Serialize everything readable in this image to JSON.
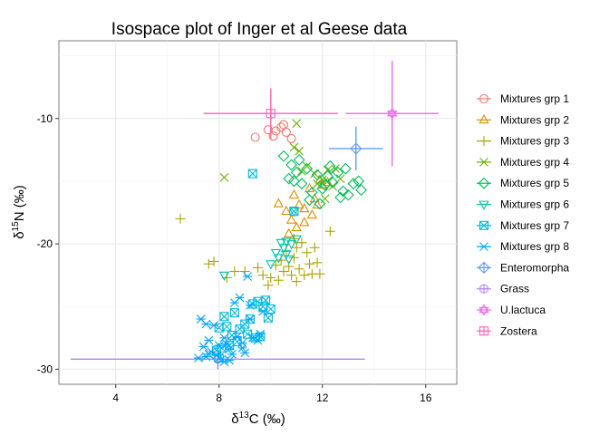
{
  "chart_data": {
    "type": "scatter",
    "title": "Isospace plot of Inger et al Geese data",
    "xlabel": {
      "prefix": "δ",
      "sup": "13",
      "main": "C (‰)"
    },
    "ylabel": {
      "prefix": "δ",
      "sup": "15",
      "main": "N (‰)"
    },
    "xlim": [
      1.8,
      17.2
    ],
    "ylim": [
      -31.2,
      -3.8
    ],
    "x_ticks": [
      4,
      8,
      12,
      16
    ],
    "y_ticks": [
      -10,
      -20,
      -30
    ],
    "grid": true,
    "legend_position": "right",
    "colors": {
      "Mixtures grp 1": "#F8766D",
      "Mixtures grp 2": "#DB8E00",
      "Mixtures grp 3": "#AEA200",
      "Mixtures grp 4": "#64B200",
      "Mixtures grp 5": "#00BD5C",
      "Mixtures grp 6": "#00C1A7",
      "Mixtures grp 7": "#00BADE",
      "Mixtures grp 8": "#00A6FF",
      "Enteromorpha": "#619CFF",
      "Grass": "#B385FF",
      "U.lactuca": "#EF67EB",
      "Zostera": "#FF63B6"
    },
    "legend": [
      {
        "name": "Mixtures grp 1",
        "shape": "circle"
      },
      {
        "name": "Mixtures grp 2",
        "shape": "triangle"
      },
      {
        "name": "Mixtures grp 3",
        "shape": "plus"
      },
      {
        "name": "Mixtures grp 4",
        "shape": "cross"
      },
      {
        "name": "Mixtures grp 5",
        "shape": "diamond"
      },
      {
        "name": "Mixtures grp 6",
        "shape": "triangle-down"
      },
      {
        "name": "Mixtures grp 7",
        "shape": "square-x"
      },
      {
        "name": "Mixtures grp 8",
        "shape": "asterisk"
      },
      {
        "name": "Enteromorpha",
        "shape": "diamond-plus"
      },
      {
        "name": "Grass",
        "shape": "circle-plus"
      },
      {
        "name": "U.lactuca",
        "shape": "star-david"
      },
      {
        "name": "Zostera",
        "shape": "square-plus"
      }
    ],
    "sources": [
      {
        "name": "Enteromorpha",
        "x": 13.3,
        "y": -12.4,
        "xerr": 1.05,
        "yerr": 1.75
      },
      {
        "name": "Grass",
        "x": 7.95,
        "y": -29.2,
        "xerr": 5.7,
        "yerr": 0.8
      },
      {
        "name": "U.lactuca",
        "x": 14.7,
        "y": -9.6,
        "xerr": 1.8,
        "yerr": 4.2
      },
      {
        "name": "Zostera",
        "x": 10.0,
        "y": -9.6,
        "xerr": 2.6,
        "yerr": 2.0
      }
    ],
    "series": [
      {
        "name": "Mixtures grp 1",
        "points": [
          [
            9.4,
            -11.5
          ],
          [
            9.9,
            -10.9
          ],
          [
            10.2,
            -11.0
          ],
          [
            10.4,
            -10.7
          ],
          [
            10.5,
            -10.5
          ],
          [
            10.6,
            -11.1
          ],
          [
            10.8,
            -11.6
          ],
          [
            10.1,
            -11.4
          ]
        ]
      },
      {
        "name": "Mixtures grp 2",
        "points": [
          [
            10.3,
            -16.8
          ],
          [
            10.6,
            -17.4
          ],
          [
            10.8,
            -18.1
          ],
          [
            10.9,
            -16.1
          ],
          [
            11.1,
            -16.9
          ],
          [
            11.3,
            -17.2
          ],
          [
            11.5,
            -15.6
          ],
          [
            11.7,
            -16.4
          ],
          [
            11.9,
            -14.9
          ],
          [
            12.0,
            -15.3
          ],
          [
            11.3,
            -18.3
          ],
          [
            11.6,
            -17.7
          ],
          [
            12.2,
            -15.1
          ],
          [
            11.0,
            -18.7
          ],
          [
            10.7,
            -19.2
          ],
          [
            11.8,
            -16.9
          ]
        ]
      },
      {
        "name": "Mixtures grp 3",
        "points": [
          [
            6.5,
            -18.0
          ],
          [
            7.6,
            -21.6
          ],
          [
            7.8,
            -21.4
          ],
          [
            8.3,
            -22.7
          ],
          [
            8.6,
            -22.2
          ],
          [
            9.0,
            -22.2
          ],
          [
            9.5,
            -21.9
          ],
          [
            9.9,
            -23.3
          ],
          [
            10.0,
            -22.7
          ],
          [
            10.2,
            -21.7
          ],
          [
            10.4,
            -21.3
          ],
          [
            10.5,
            -22.2
          ],
          [
            10.7,
            -21.8
          ],
          [
            10.8,
            -22.5
          ],
          [
            10.9,
            -21.1
          ],
          [
            11.0,
            -20.3
          ],
          [
            11.1,
            -22.0
          ],
          [
            11.3,
            -22.5
          ],
          [
            11.5,
            -21.6
          ],
          [
            11.6,
            -22.4
          ],
          [
            11.2,
            -19.9
          ],
          [
            11.4,
            -20.7
          ],
          [
            11.7,
            -20.3
          ],
          [
            12.3,
            -19.0
          ],
          [
            11.8,
            -21.5
          ],
          [
            10.6,
            -20.6
          ],
          [
            10.3,
            -22.9
          ],
          [
            9.7,
            -22.5
          ],
          [
            10.9,
            -19.6
          ],
          [
            11.9,
            -22.4
          ],
          [
            11.0,
            -23.0
          ]
        ]
      },
      {
        "name": "Mixtures grp 4",
        "points": [
          [
            8.2,
            -14.7
          ],
          [
            11.0,
            -10.4
          ],
          [
            11.1,
            -12.6
          ],
          [
            10.9,
            -12.3
          ],
          [
            11.4,
            -13.8
          ],
          [
            11.7,
            -14.4
          ],
          [
            12.0,
            -14.9
          ],
          [
            12.4,
            -15.4
          ],
          [
            12.7,
            -14.8
          ],
          [
            12.1,
            -16.4
          ],
          [
            11.2,
            -14.2
          ],
          [
            12.5,
            -14.0
          ],
          [
            11.8,
            -15.2
          ],
          [
            12.2,
            -14.1
          ]
        ]
      },
      {
        "name": "Mixtures grp 5",
        "points": [
          [
            10.5,
            -13.0
          ],
          [
            10.8,
            -13.7
          ],
          [
            11.0,
            -14.3
          ],
          [
            11.2,
            -15.2
          ],
          [
            11.4,
            -14.0
          ],
          [
            11.6,
            -15.9
          ],
          [
            11.8,
            -14.5
          ],
          [
            12.0,
            -15.6
          ],
          [
            12.2,
            -14.6
          ],
          [
            12.4,
            -15.1
          ],
          [
            12.6,
            -14.3
          ],
          [
            12.8,
            -15.8
          ],
          [
            13.0,
            -16.1
          ],
          [
            13.2,
            -15.2
          ],
          [
            13.5,
            -15.7
          ],
          [
            10.9,
            -15.0
          ],
          [
            11.5,
            -16.5
          ],
          [
            12.3,
            -13.8
          ],
          [
            12.9,
            -14.0
          ],
          [
            10.7,
            -14.8
          ],
          [
            11.9,
            -16.8
          ],
          [
            13.4,
            -15.0
          ],
          [
            11.1,
            -13.3
          ],
          [
            12.1,
            -15.3
          ],
          [
            12.7,
            -16.3
          ]
        ]
      },
      {
        "name": "Mixtures grp 6",
        "points": [
          [
            8.2,
            -22.5
          ],
          [
            10.0,
            -21.6
          ],
          [
            10.2,
            -20.7
          ],
          [
            10.5,
            -20.3
          ],
          [
            10.6,
            -19.8
          ],
          [
            10.7,
            -21.2
          ],
          [
            10.8,
            -20.0
          ],
          [
            11.0,
            -19.6
          ],
          [
            10.9,
            -17.4
          ],
          [
            10.3,
            -21.1
          ],
          [
            10.4,
            -19.9
          ],
          [
            10.6,
            -20.8
          ]
        ]
      },
      {
        "name": "Mixtures grp 7",
        "points": [
          [
            9.3,
            -14.4
          ],
          [
            10.9,
            -17.4
          ],
          [
            8.0,
            -26.7
          ],
          [
            8.3,
            -26.6
          ],
          [
            8.5,
            -27.3
          ],
          [
            8.6,
            -25.5
          ],
          [
            8.8,
            -26.8
          ],
          [
            9.0,
            -26.4
          ],
          [
            9.1,
            -27.2
          ],
          [
            9.3,
            -24.8
          ],
          [
            9.5,
            -24.6
          ],
          [
            9.7,
            -25.0
          ],
          [
            9.9,
            -25.9
          ],
          [
            8.1,
            -28.3
          ],
          [
            8.4,
            -28.1
          ],
          [
            8.0,
            -29.1
          ],
          [
            7.9,
            -28.5
          ],
          [
            8.7,
            -27.8
          ],
          [
            9.4,
            -27.5
          ],
          [
            9.6,
            -27.4
          ],
          [
            10.0,
            -25.2
          ],
          [
            8.2,
            -25.8
          ],
          [
            9.2,
            -26.0
          ],
          [
            9.8,
            -24.5
          ]
        ]
      },
      {
        "name": "Mixtures grp 8",
        "points": [
          [
            7.3,
            -26.0
          ],
          [
            7.5,
            -26.4
          ],
          [
            7.6,
            -27.7
          ],
          [
            7.7,
            -28.6
          ],
          [
            7.9,
            -28.9
          ],
          [
            8.1,
            -29.2
          ],
          [
            8.2,
            -27.5
          ],
          [
            8.3,
            -28.0
          ],
          [
            8.4,
            -29.3
          ],
          [
            8.5,
            -28.8
          ],
          [
            8.7,
            -27.4
          ],
          [
            8.9,
            -27.9
          ],
          [
            9.0,
            -28.7
          ],
          [
            9.2,
            -26.0
          ],
          [
            9.3,
            -27.5
          ],
          [
            9.5,
            -27.7
          ],
          [
            9.6,
            -27.2
          ],
          [
            9.7,
            -25.4
          ],
          [
            8.8,
            -24.3
          ],
          [
            8.6,
            -24.7
          ],
          [
            9.1,
            -22.6
          ],
          [
            7.2,
            -29.1
          ],
          [
            7.4,
            -28.2
          ],
          [
            7.8,
            -26.5
          ],
          [
            8.0,
            -28.1
          ],
          [
            8.9,
            -28.3
          ],
          [
            7.5,
            -29.0
          ],
          [
            8.2,
            -29.4
          ],
          [
            7.6,
            -28.8
          ],
          [
            8.4,
            -28.4
          ],
          [
            9.2,
            -24.9
          ]
        ]
      }
    ]
  }
}
